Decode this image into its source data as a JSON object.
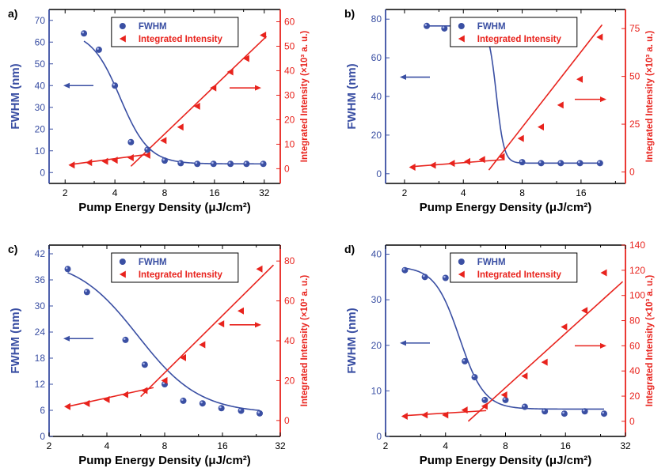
{
  "colors": {
    "fwhm": "#3a4fa3",
    "intensity": "#e8231d",
    "axis": "#000000"
  },
  "chart_data": [
    {
      "panel": "a)",
      "type": "scatter",
      "xlabel": "Pump Energy Density (μJ/cm²)",
      "x_scale": "log2",
      "xlim": [
        1.6,
        40
      ],
      "x_ticks": [
        2,
        4,
        8,
        16,
        32
      ],
      "ylabel_left": "FWHM (nm)",
      "ylim_left": [
        -5,
        75
      ],
      "yticks_left": [
        0,
        10,
        20,
        30,
        40,
        50,
        60,
        70
      ],
      "ylabel_right": "Integrated Intensity (×10³ a. u.)",
      "ylim_right": [
        -6,
        65
      ],
      "yticks_right": [
        0,
        10,
        20,
        30,
        40,
        50,
        60
      ],
      "legend": [
        "FWHM",
        "Integrated Intensity"
      ],
      "legend_position": "top-center",
      "fwhm_x": [
        2.6,
        3.2,
        4.0,
        5.0,
        6.3,
        8.0,
        10.0,
        12.6,
        15.8,
        20.0,
        25.0,
        31.6
      ],
      "fwhm": [
        64,
        56.5,
        40,
        14,
        10.5,
        5.5,
        4.3,
        4.0,
        4.0,
        4.0,
        4.0,
        4.0
      ],
      "fwhm_fit": {
        "top": 65,
        "bottom": 4,
        "x0": 4.3,
        "slope": 5
      },
      "intensity_x": [
        2.2,
        2.8,
        3.5,
        4.0,
        5.0,
        6.3,
        7.9,
        10.0,
        12.6,
        15.8,
        20.0,
        25.0,
        31.6
      ],
      "intensity": [
        1.5,
        2.5,
        3.0,
        3.5,
        4.5,
        5.5,
        11.5,
        17.0,
        25.5,
        33.0,
        39.5,
        45.0,
        54.5
      ],
      "intensity_fit_below": [
        [
          2.2,
          1.8
        ],
        [
          6.2,
          5.8
        ]
      ],
      "intensity_fit_above": [
        [
          5.0,
          1.0
        ],
        [
          33,
          54
        ]
      ],
      "arrow_left_at": 40,
      "arrow_right_at": 33
    },
    {
      "panel": "b)",
      "type": "scatter",
      "xlabel": "Pump Energy Density (μJ/cm²)",
      "x_scale": "log2",
      "xlim": [
        1.6,
        27
      ],
      "x_ticks": [
        2,
        4,
        8,
        16
      ],
      "ylabel_left": "FWHM (nm)",
      "ylim_left": [
        -5,
        85
      ],
      "yticks_left": [
        0,
        20,
        40,
        60,
        80
      ],
      "ylabel_right": "Integrated Intensity (×10³ a. u.)",
      "ylim_right": [
        -6,
        85
      ],
      "yticks_right": [
        0,
        25,
        50,
        75
      ],
      "legend": [
        "FWHM",
        "Integrated Intensity"
      ],
      "legend_position": "top-center",
      "fwhm_x": [
        2.6,
        3.2,
        4.0,
        5.0,
        8.0,
        10.0,
        12.6,
        15.8,
        20.0
      ],
      "fwhm": [
        76.5,
        75.2,
        75.2,
        67.5,
        6,
        5.5,
        5.5,
        5.5,
        5.5
      ],
      "fwhm_fit": {
        "top": 76.5,
        "bottom": 5.5,
        "x0": 5.9,
        "slope": 22
      },
      "intensity_x": [
        2.2,
        2.8,
        3.5,
        4.2,
        5.0,
        6.3,
        7.9,
        10.0,
        12.6,
        15.8,
        20.0
      ],
      "intensity": [
        2.5,
        3.5,
        4.5,
        5.5,
        6.5,
        8.0,
        17.5,
        23.5,
        35.0,
        48.5,
        70.5
      ],
      "intensity_fit_below": [
        [
          2.2,
          2.8
        ],
        [
          6.5,
          6.5
        ]
      ],
      "intensity_fit_above": [
        [
          5.4,
          1.0
        ],
        [
          20.5,
          77.0
        ]
      ],
      "arrow_left_at": 50,
      "arrow_right_at": 38
    },
    {
      "panel": "c)",
      "type": "scatter",
      "xlabel": "Pump Energy Density (μJ/cm²)",
      "x_scale": "log2",
      "xlim": [
        2,
        32
      ],
      "x_ticks": [
        2,
        4,
        8,
        16,
        32
      ],
      "ylabel_left": "FWHM (nm)",
      "ylim_left": [
        0,
        44
      ],
      "yticks_left": [
        0,
        6,
        12,
        18,
        24,
        30,
        36,
        42
      ],
      "ylabel_right": "Integrated Intensity (×10³ a. u.)",
      "ylim_right": [
        -8,
        88
      ],
      "yticks_right": [
        0,
        20,
        40,
        60,
        80
      ],
      "legend": [
        "FWHM",
        "Integrated Intensity"
      ],
      "legend_position": "top-center",
      "fwhm_x": [
        2.5,
        3.15,
        5.0,
        6.3,
        8.0,
        10.0,
        12.6,
        15.8,
        20.0,
        25.0
      ],
      "fwhm": [
        38.5,
        33.2,
        22.2,
        16.5,
        12.0,
        8.2,
        7.6,
        6.5,
        5.9,
        5.3
      ],
      "fwhm_fit": {
        "top": 41,
        "bottom": 5.3,
        "x0": 5.8,
        "slope": 2.7
      },
      "intensity_x": [
        2.5,
        3.15,
        4.0,
        5.0,
        6.3,
        8.0,
        10.0,
        12.6,
        15.8,
        20.0,
        25.0
      ],
      "intensity": [
        7,
        8.5,
        10.5,
        13,
        15,
        20,
        31.5,
        38,
        48.5,
        55,
        76
      ],
      "intensity_fit_below": [
        [
          2.5,
          7.0
        ],
        [
          7.0,
          16.5
        ]
      ],
      "intensity_fit_above": [
        [
          6.0,
          12.0
        ],
        [
          29.5,
          78.0
        ]
      ],
      "arrow_left_at": 22.5,
      "arrow_right_at": 48
    },
    {
      "panel": "d)",
      "type": "scatter",
      "xlabel": "Pump Energy Density (μJ/cm²)",
      "x_scale": "log2",
      "xlim": [
        2,
        32
      ],
      "x_ticks": [
        2,
        4,
        8,
        16,
        32
      ],
      "ylabel_left": "FWHM (nm)",
      "ylim_left": [
        0,
        42
      ],
      "yticks_left": [
        0,
        10,
        20,
        30,
        40
      ],
      "ylabel_right": "Integrated Intensity (×10³ a. u.)",
      "ylim_right": [
        -12,
        140
      ],
      "yticks_right": [
        0,
        20,
        40,
        60,
        80,
        100,
        120,
        140
      ],
      "legend": [
        "FWHM",
        "Integrated Intensity"
      ],
      "legend_position": "top-center",
      "fwhm_x": [
        2.5,
        3.15,
        4.0,
        5.0,
        5.6,
        6.3,
        8.0,
        10.0,
        12.6,
        15.8,
        20.0,
        25.0
      ],
      "fwhm": [
        36.5,
        35.0,
        34.8,
        16.5,
        13.0,
        8.0,
        8.0,
        6.5,
        5.5,
        5.0,
        5.5,
        5.0
      ],
      "fwhm_fit": {
        "top": 37.3,
        "bottom": 6,
        "x0": 4.7,
        "slope": 7
      },
      "intensity_x": [
        2.5,
        3.15,
        4.0,
        5.0,
        6.3,
        7.9,
        10.0,
        12.6,
        15.8,
        20.0,
        25.0
      ],
      "intensity": [
        4,
        5,
        5,
        9,
        12,
        21,
        36,
        47,
        75,
        88,
        118
      ],
      "intensity_fit_below": [
        [
          2.5,
          4.5
        ],
        [
          6.4,
          8.5
        ]
      ],
      "intensity_fit_above": [
        [
          5.2,
          0.0
        ],
        [
          31.0,
          111.0
        ]
      ],
      "arrow_left_at": 20.5,
      "arrow_right_at": 60
    }
  ]
}
